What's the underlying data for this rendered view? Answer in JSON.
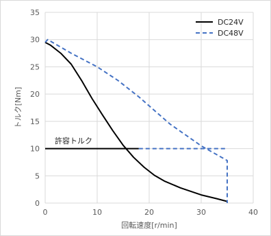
{
  "chart_data": {
    "type": "line",
    "xlabel": "回転速度[r/min]",
    "ylabel": "トルク[Nm]",
    "xlim": [
      0,
      40
    ],
    "ylim": [
      0,
      35
    ],
    "xticks": [
      "0",
      "10",
      "20",
      "30",
      "40"
    ],
    "yticks": [
      "0",
      "5",
      "10",
      "15",
      "20",
      "25",
      "30",
      "35"
    ],
    "grid": true,
    "legend_position": "top-right",
    "colors": {
      "dc24v": "#000000",
      "dc48v": "#4472c4"
    },
    "series": [
      {
        "name": "DC24V",
        "style": "solid",
        "x": [
          0,
          1,
          3,
          5,
          7,
          9,
          11,
          13,
          15,
          17,
          19,
          21,
          23,
          26,
          30,
          33,
          35
        ],
        "y": [
          29.5,
          29,
          27.5,
          25.5,
          22.5,
          19.2,
          16.2,
          13.3,
          10.6,
          8.4,
          6.6,
          5.1,
          4.0,
          2.8,
          1.5,
          0.8,
          0.3
        ]
      },
      {
        "name": "DC48V",
        "style": "dashed",
        "x": [
          0,
          0.5,
          5,
          10,
          14,
          18,
          21,
          24,
          27,
          30,
          35,
          35
        ],
        "y": [
          29.5,
          30,
          27.5,
          25,
          22.5,
          19.5,
          17,
          14.5,
          12.5,
          10.5,
          7.8,
          0
        ]
      }
    ],
    "allowable_torque": {
      "label": "許容トルク",
      "y": 10,
      "solid_x": [
        0,
        18
      ],
      "dashed_x": [
        18,
        35
      ]
    }
  }
}
